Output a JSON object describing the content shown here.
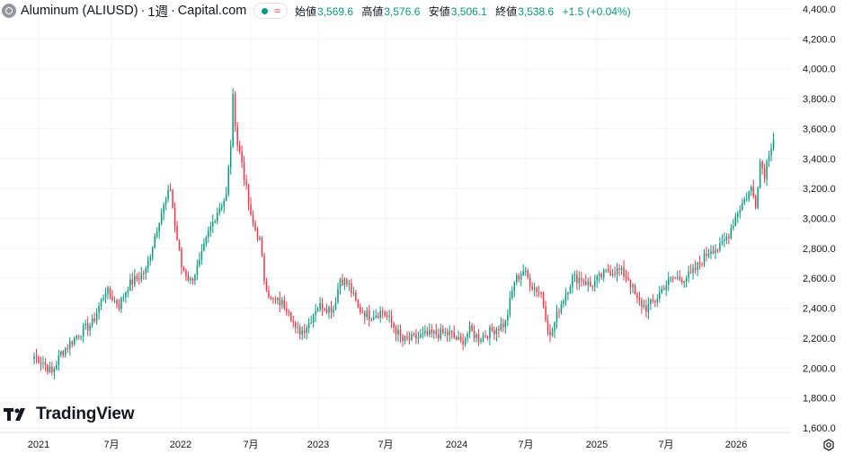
{
  "legend": {
    "symbol": "Aluminum (ALIUSD)",
    "separator1": "·",
    "interval": "1週",
    "separator2": "·",
    "source": "Capital.com",
    "wave_glyph": "≈",
    "open_label": "始値",
    "open": "3,569.6",
    "high_label": "高値",
    "high": "3,576.6",
    "low_label": "安値",
    "low": "3,506.1",
    "close_label": "終値",
    "close": "3,538.6",
    "change": "+1.5 (+0.04%)"
  },
  "branding": {
    "logo_text": "TradingView"
  },
  "colors": {
    "up": "#089981",
    "down": "#f23645",
    "grid": "#f0f3fa",
    "axis_text": "#131722"
  },
  "chart_data": {
    "type": "candlestick",
    "y_axis": {
      "ticks": [
        "4,400.0",
        "4,200.0",
        "4,000.0",
        "3,800.0",
        "3,600.0",
        "3,400.0",
        "3,200.0",
        "3,000.0",
        "2,800.0",
        "2,600.0",
        "2,400.0",
        "2,200.0",
        "2,000.0",
        "1,800.0",
        "1,600.0"
      ],
      "range": [
        1600,
        4400
      ]
    },
    "x_axis": {
      "ticks": [
        "2021",
        "7月",
        "2022",
        "7月",
        "2023",
        "7月",
        "2024",
        "7月",
        "2025",
        "7月",
        "2026"
      ]
    },
    "series_path": [
      [
        0,
        2080
      ],
      [
        4,
        2040
      ],
      [
        8,
        1965
      ],
      [
        12,
        2100
      ],
      [
        20,
        2230
      ],
      [
        26,
        2300
      ],
      [
        32,
        2520
      ],
      [
        38,
        2420
      ],
      [
        42,
        2550
      ],
      [
        50,
        2650
      ],
      [
        56,
        3000
      ],
      [
        61,
        3200
      ],
      [
        63,
        2950
      ],
      [
        66,
        2680
      ],
      [
        70,
        2580
      ],
      [
        74,
        2700
      ],
      [
        78,
        2900
      ],
      [
        82,
        3050
      ],
      [
        86,
        3150
      ],
      [
        88,
        3500
      ],
      [
        89,
        3800
      ],
      [
        91,
        3500
      ],
      [
        93,
        3380
      ],
      [
        97,
        3000
      ],
      [
        101,
        2850
      ],
      [
        103,
        2600
      ],
      [
        106,
        2450
      ],
      [
        110,
        2440
      ],
      [
        114,
        2400
      ],
      [
        117,
        2250
      ],
      [
        120,
        2250
      ],
      [
        123,
        2300
      ],
      [
        126,
        2400
      ],
      [
        129,
        2420
      ],
      [
        132,
        2400
      ],
      [
        134,
        2400
      ],
      [
        137,
        2600
      ],
      [
        141,
        2550
      ],
      [
        145,
        2400
      ],
      [
        150,
        2350
      ],
      [
        156,
        2380
      ],
      [
        160,
        2300
      ],
      [
        165,
        2180
      ],
      [
        170,
        2200
      ],
      [
        176,
        2220
      ],
      [
        181,
        2230
      ],
      [
        186,
        2230
      ],
      [
        191,
        2170
      ],
      [
        195,
        2250
      ],
      [
        199,
        2200
      ],
      [
        205,
        2250
      ],
      [
        211,
        2300
      ],
      [
        215,
        2580
      ],
      [
        219,
        2650
      ],
      [
        223,
        2550
      ],
      [
        227,
        2500
      ],
      [
        231,
        2200
      ],
      [
        235,
        2400
      ],
      [
        241,
        2600
      ],
      [
        245,
        2600
      ],
      [
        249,
        2550
      ],
      [
        253,
        2600
      ],
      [
        257,
        2650
      ],
      [
        262,
        2650
      ],
      [
        266,
        2600
      ],
      [
        270,
        2450
      ],
      [
        274,
        2400
      ],
      [
        278,
        2450
      ],
      [
        282,
        2550
      ],
      [
        286,
        2600
      ],
      [
        290,
        2600
      ],
      [
        294,
        2620
      ],
      [
        298,
        2700
      ],
      [
        303,
        2800
      ],
      [
        307,
        2800
      ],
      [
        311,
        2900
      ],
      [
        315,
        3050
      ],
      [
        319,
        3150
      ],
      [
        321,
        3200
      ],
      [
        323,
        3100
      ],
      [
        325,
        3380
      ],
      [
        327,
        3300
      ],
      [
        329,
        3450
      ],
      [
        331,
        3540
      ]
    ]
  }
}
